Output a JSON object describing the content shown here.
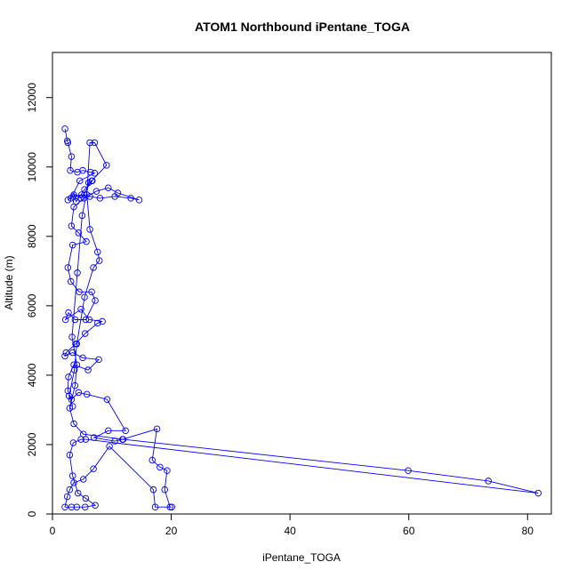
{
  "chart_data": {
    "type": "line",
    "title": "ATOM1 Northbound iPentane_TOGA",
    "xlabel": "iPentane_TOGA",
    "ylabel": "Altitude (m)",
    "xlim": [
      0,
      84
    ],
    "ylim": [
      0,
      13300
    ],
    "xticks": [
      0,
      20,
      40,
      60,
      80
    ],
    "yticks": [
      0,
      2000,
      4000,
      6000,
      8000,
      10000,
      12000
    ],
    "color": "#0000ff",
    "grid": false,
    "markers": "open-circle",
    "points": [
      [
        2.1,
        11100
      ],
      [
        2.5,
        10750
      ],
      [
        2.6,
        10700
      ],
      [
        3.2,
        10300
      ],
      [
        3.0,
        9900
      ],
      [
        4.2,
        9850
      ],
      [
        5.1,
        9900
      ],
      [
        6.4,
        9850
      ],
      [
        7.1,
        9820
      ],
      [
        4.6,
        9600
      ],
      [
        3.1,
        9100
      ],
      [
        2.6,
        9050
      ],
      [
        3.5,
        9150
      ],
      [
        4.9,
        9200
      ],
      [
        6.3,
        9150
      ],
      [
        8.0,
        9100
      ],
      [
        10.5,
        9150
      ],
      [
        13.2,
        9100
      ],
      [
        14.6,
        9050
      ],
      [
        11.0,
        9250
      ],
      [
        9.4,
        9400
      ],
      [
        7.4,
        9300
      ],
      [
        5.3,
        9100
      ],
      [
        3.6,
        8850
      ],
      [
        3.2,
        8300
      ],
      [
        4.4,
        8100
      ],
      [
        5.7,
        7850
      ],
      [
        3.4,
        7750
      ],
      [
        2.6,
        7100
      ],
      [
        3.1,
        6700
      ],
      [
        4.5,
        6400
      ],
      [
        6.6,
        6400
      ],
      [
        7.2,
        6150
      ],
      [
        5.6,
        5600
      ],
      [
        3.8,
        5600
      ],
      [
        2.7,
        5800
      ],
      [
        2.2,
        5600
      ],
      [
        4.8,
        5900
      ],
      [
        6.2,
        5600
      ],
      [
        8.4,
        5550
      ],
      [
        7.6,
        5500
      ],
      [
        5.5,
        5200
      ],
      [
        3.9,
        4900
      ],
      [
        2.3,
        4650
      ],
      [
        2.1,
        4550
      ],
      [
        3.4,
        4650
      ],
      [
        5.1,
        4500
      ],
      [
        7.8,
        4450
      ],
      [
        6.0,
        4150
      ],
      [
        3.6,
        4300
      ],
      [
        2.7,
        3950
      ],
      [
        2.6,
        3550
      ],
      [
        3.2,
        3300
      ],
      [
        4.4,
        3500
      ],
      [
        5.8,
        3450
      ],
      [
        9.2,
        3300
      ],
      [
        12.3,
        2400
      ],
      [
        9.4,
        2400
      ],
      [
        7.0,
        2200
      ],
      [
        10.5,
        2100
      ],
      [
        11.8,
        2150
      ],
      [
        17.6,
        2450
      ],
      [
        16.8,
        1550
      ],
      [
        18.1,
        1350
      ],
      [
        19.3,
        1250
      ],
      [
        18.9,
        700
      ],
      [
        19.8,
        200
      ],
      [
        20.1,
        200
      ],
      [
        17.3,
        200
      ],
      [
        17.0,
        700
      ],
      [
        9.6,
        1950
      ],
      [
        6.9,
        1300
      ],
      [
        5.2,
        1000
      ],
      [
        3.6,
        900
      ],
      [
        2.9,
        700
      ],
      [
        2.5,
        500
      ],
      [
        2.1,
        200
      ],
      [
        3.2,
        200
      ],
      [
        4.1,
        200
      ],
      [
        5.5,
        200
      ],
      [
        7.2,
        250
      ],
      [
        5.6,
        450
      ],
      [
        4.3,
        600
      ],
      [
        3.4,
        1100
      ],
      [
        2.9,
        1700
      ],
      [
        3.5,
        2050
      ],
      [
        4.8,
        2150
      ],
      [
        5.6,
        2150
      ],
      [
        81.8,
        600
      ],
      [
        73.4,
        950
      ],
      [
        59.9,
        1250
      ],
      [
        11.9,
        2150
      ],
      [
        5.2,
        2300
      ],
      [
        3.6,
        2600
      ],
      [
        2.9,
        3050
      ],
      [
        3.8,
        3700
      ],
      [
        4.1,
        4300
      ],
      [
        3.3,
        5100
      ],
      [
        4.2,
        6950
      ],
      [
        5.0,
        8600
      ],
      [
        6.1,
        9550
      ],
      [
        6.7,
        9600
      ],
      [
        5.4,
        9350
      ],
      [
        4.0,
        9000
      ],
      [
        3.6,
        9200
      ],
      [
        4.8,
        9100
      ],
      [
        6.6,
        9600
      ],
      [
        9.1,
        10050
      ],
      [
        7.1,
        10700
      ],
      [
        6.3,
        10700
      ],
      [
        5.8,
        9200
      ],
      [
        6.3,
        8200
      ],
      [
        7.6,
        7550
      ],
      [
        7.9,
        7300
      ],
      [
        6.9,
        7100
      ],
      [
        5.4,
        6250
      ],
      [
        4.1,
        4900
      ],
      [
        3.7,
        4150
      ],
      [
        2.8,
        3400
      ],
      [
        3.4,
        3100
      ]
    ]
  }
}
